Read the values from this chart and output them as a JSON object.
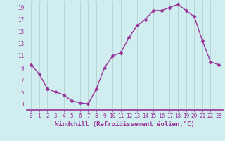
{
  "x": [
    0,
    1,
    2,
    3,
    4,
    5,
    6,
    7,
    8,
    9,
    10,
    11,
    12,
    13,
    14,
    15,
    16,
    17,
    18,
    19,
    20,
    21,
    22,
    23
  ],
  "y": [
    9.5,
    8.0,
    5.5,
    5.0,
    4.5,
    3.5,
    3.2,
    3.0,
    5.5,
    9.0,
    11.0,
    11.5,
    14.0,
    16.0,
    17.0,
    18.5,
    18.5,
    19.0,
    19.5,
    18.5,
    17.5,
    13.5,
    10.0,
    9.5
  ],
  "line_color": "#993399",
  "marker": "D",
  "marker_size": 2.5,
  "bg_color": "#d0eef0",
  "grid_color": "#aacccc",
  "tick_color": "#993399",
  "label_color": "#993399",
  "xlabel": "Windchill (Refroidissement éolien,°C)",
  "xlim": [
    -0.5,
    23.5
  ],
  "ylim": [
    2.0,
    20.0
  ],
  "yticks": [
    3,
    5,
    7,
    9,
    11,
    13,
    15,
    17,
    19
  ],
  "xticks": [
    0,
    1,
    2,
    3,
    4,
    5,
    6,
    7,
    8,
    9,
    10,
    11,
    12,
    13,
    14,
    15,
    16,
    17,
    18,
    19,
    20,
    21,
    22,
    23
  ],
  "xlabel_fontsize": 6.5,
  "tick_fontsize": 5.5
}
